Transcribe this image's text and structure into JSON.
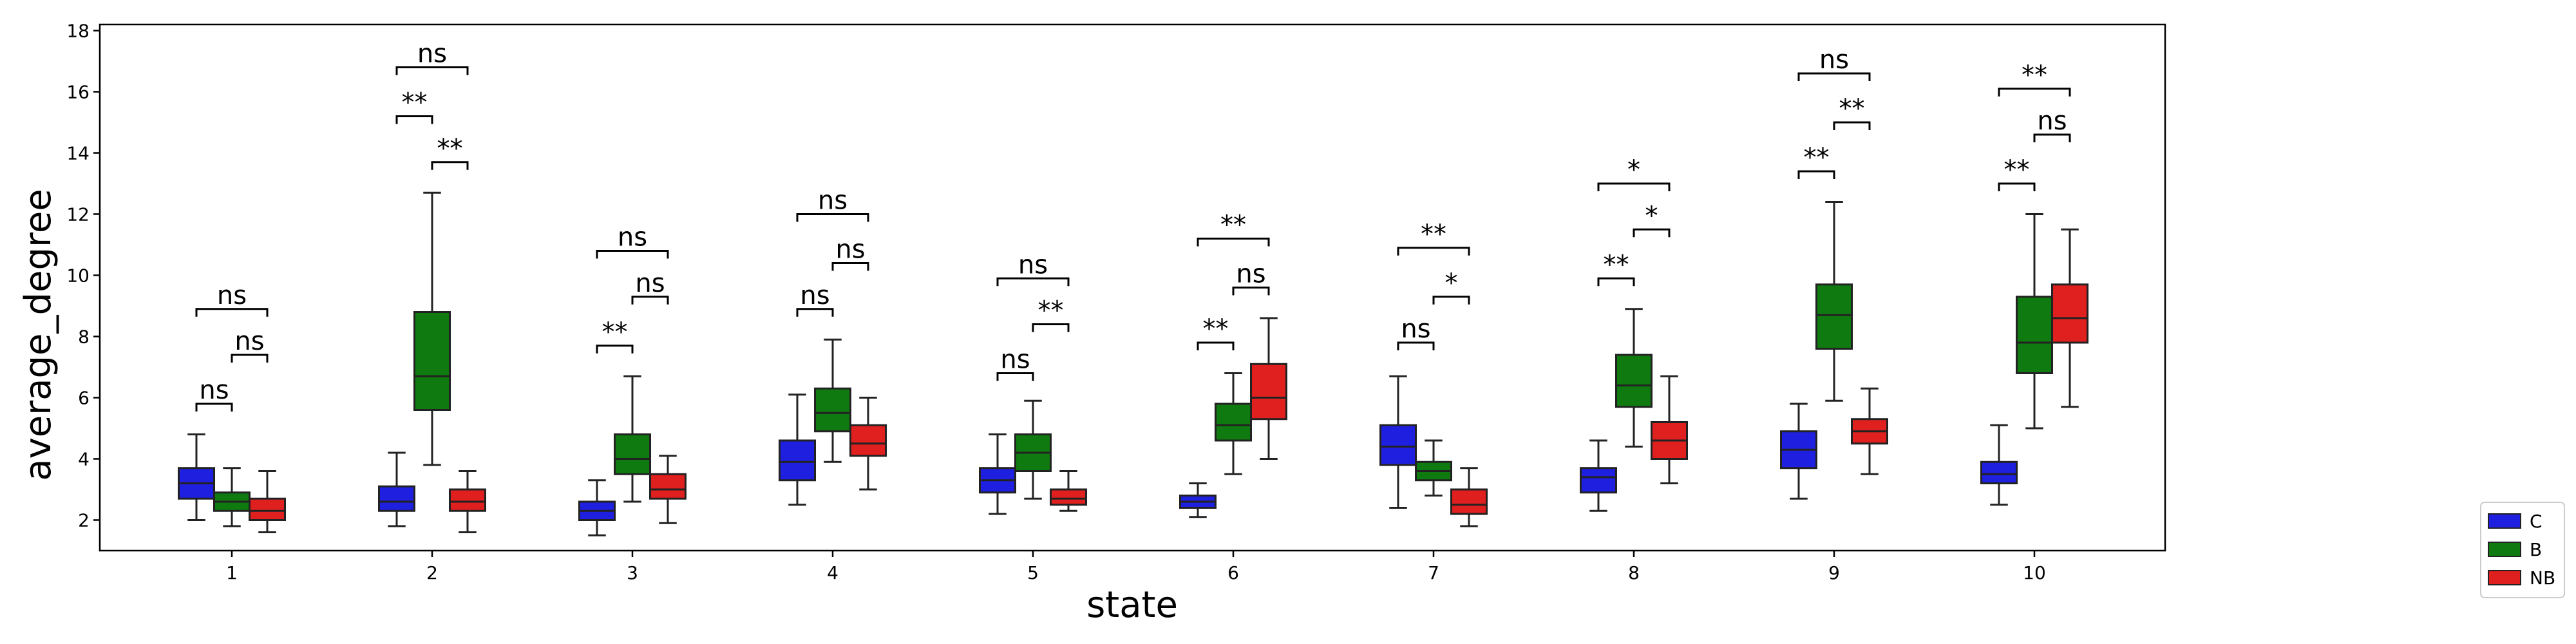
{
  "chart_data": {
    "type": "box",
    "title": "",
    "xlabel": "state",
    "ylabel": "average_degree",
    "ylim": [
      1,
      18.2
    ],
    "yticks": [
      2,
      4,
      6,
      8,
      10,
      12,
      14,
      16,
      18
    ],
    "categories": [
      "1",
      "2",
      "3",
      "4",
      "5",
      "6",
      "7",
      "8",
      "9",
      "10"
    ],
    "grid": false,
    "legend_position": "outside-lower-right",
    "series": [
      {
        "name": "C",
        "color": "#1f1fe0",
        "boxes": [
          {
            "whislo": 2.0,
            "q1": 2.7,
            "med": 3.2,
            "q3": 3.7,
            "whishi": 4.8
          },
          {
            "whislo": 1.8,
            "q1": 2.3,
            "med": 2.6,
            "q3": 3.1,
            "whishi": 4.2
          },
          {
            "whislo": 1.5,
            "q1": 2.0,
            "med": 2.3,
            "q3": 2.6,
            "whishi": 3.3
          },
          {
            "whislo": 2.5,
            "q1": 3.3,
            "med": 3.9,
            "q3": 4.6,
            "whishi": 6.1
          },
          {
            "whislo": 2.2,
            "q1": 2.9,
            "med": 3.3,
            "q3": 3.7,
            "whishi": 4.8
          },
          {
            "whislo": 2.1,
            "q1": 2.4,
            "med": 2.6,
            "q3": 2.8,
            "whishi": 3.2
          },
          {
            "whislo": 2.4,
            "q1": 3.8,
            "med": 4.4,
            "q3": 5.1,
            "whishi": 6.7
          },
          {
            "whislo": 2.3,
            "q1": 2.9,
            "med": 3.4,
            "q3": 3.7,
            "whishi": 4.6
          },
          {
            "whislo": 2.7,
            "q1": 3.7,
            "med": 4.3,
            "q3": 4.9,
            "whishi": 5.8
          },
          {
            "whislo": 2.5,
            "q1": 3.2,
            "med": 3.5,
            "q3": 3.9,
            "whishi": 5.1
          }
        ]
      },
      {
        "name": "B",
        "color": "#0f7a0f",
        "boxes": [
          {
            "whislo": 1.8,
            "q1": 2.3,
            "med": 2.6,
            "q3": 2.9,
            "whishi": 3.7
          },
          {
            "whislo": 3.8,
            "q1": 5.6,
            "med": 6.7,
            "q3": 8.8,
            "whishi": 12.7
          },
          {
            "whislo": 2.6,
            "q1": 3.5,
            "med": 4.0,
            "q3": 4.8,
            "whishi": 6.7
          },
          {
            "whislo": 3.9,
            "q1": 4.9,
            "med": 5.5,
            "q3": 6.3,
            "whishi": 7.9
          },
          {
            "whislo": 2.7,
            "q1": 3.6,
            "med": 4.2,
            "q3": 4.8,
            "whishi": 5.9
          },
          {
            "whislo": 3.5,
            "q1": 4.6,
            "med": 5.1,
            "q3": 5.8,
            "whishi": 6.8
          },
          {
            "whislo": 2.8,
            "q1": 3.3,
            "med": 3.6,
            "q3": 3.9,
            "whishi": 4.6
          },
          {
            "whislo": 4.4,
            "q1": 5.7,
            "med": 6.4,
            "q3": 7.4,
            "whishi": 8.9
          },
          {
            "whislo": 5.9,
            "q1": 7.6,
            "med": 8.7,
            "q3": 9.7,
            "whishi": 12.4
          },
          {
            "whislo": 5.0,
            "q1": 6.8,
            "med": 7.8,
            "q3": 9.3,
            "whishi": 12.0
          }
        ]
      },
      {
        "name": "NB",
        "color": "#e01f1f",
        "boxes": [
          {
            "whislo": 1.6,
            "q1": 2.0,
            "med": 2.3,
            "q3": 2.7,
            "whishi": 3.6
          },
          {
            "whislo": 1.6,
            "q1": 2.3,
            "med": 2.6,
            "q3": 3.0,
            "whishi": 3.6
          },
          {
            "whislo": 1.9,
            "q1": 2.7,
            "med": 3.0,
            "q3": 3.5,
            "whishi": 4.1
          },
          {
            "whislo": 3.0,
            "q1": 4.1,
            "med": 4.5,
            "q3": 5.1,
            "whishi": 6.0
          },
          {
            "whislo": 2.3,
            "q1": 2.5,
            "med": 2.7,
            "q3": 3.0,
            "whishi": 3.6
          },
          {
            "whislo": 4.0,
            "q1": 5.3,
            "med": 6.0,
            "q3": 7.1,
            "whishi": 8.6
          },
          {
            "whislo": 1.8,
            "q1": 2.2,
            "med": 2.5,
            "q3": 3.0,
            "whishi": 3.7
          },
          {
            "whislo": 3.2,
            "q1": 4.0,
            "med": 4.6,
            "q3": 5.2,
            "whishi": 6.7
          },
          {
            "whislo": 3.5,
            "q1": 4.5,
            "med": 4.9,
            "q3": 5.3,
            "whishi": 6.3
          },
          {
            "whislo": 5.7,
            "q1": 7.8,
            "med": 8.6,
            "q3": 9.7,
            "whishi": 11.5
          }
        ]
      }
    ],
    "annotations": [
      {
        "category": "1",
        "from": "C",
        "to": "B",
        "y": 5.8,
        "label": "ns"
      },
      {
        "category": "1",
        "from": "B",
        "to": "NB",
        "y": 7.4,
        "label": "ns"
      },
      {
        "category": "1",
        "from": "C",
        "to": "NB",
        "y": 8.9,
        "label": "ns"
      },
      {
        "category": "2",
        "from": "C",
        "to": "B",
        "y": 15.2,
        "label": "**"
      },
      {
        "category": "2",
        "from": "B",
        "to": "NB",
        "y": 13.7,
        "label": "**"
      },
      {
        "category": "2",
        "from": "C",
        "to": "NB",
        "y": 16.8,
        "label": "ns"
      },
      {
        "category": "3",
        "from": "C",
        "to": "B",
        "y": 7.7,
        "label": "**"
      },
      {
        "category": "3",
        "from": "B",
        "to": "NB",
        "y": 9.3,
        "label": "ns"
      },
      {
        "category": "3",
        "from": "C",
        "to": "NB",
        "y": 10.8,
        "label": "ns"
      },
      {
        "category": "4",
        "from": "C",
        "to": "B",
        "y": 8.9,
        "label": "ns"
      },
      {
        "category": "4",
        "from": "B",
        "to": "NB",
        "y": 10.4,
        "label": "ns"
      },
      {
        "category": "4",
        "from": "C",
        "to": "NB",
        "y": 12.0,
        "label": "ns"
      },
      {
        "category": "5",
        "from": "C",
        "to": "B",
        "y": 6.8,
        "label": "ns"
      },
      {
        "category": "5",
        "from": "B",
        "to": "NB",
        "y": 8.4,
        "label": "**"
      },
      {
        "category": "5",
        "from": "C",
        "to": "NB",
        "y": 9.9,
        "label": "ns"
      },
      {
        "category": "6",
        "from": "C",
        "to": "B",
        "y": 7.8,
        "label": "**"
      },
      {
        "category": "6",
        "from": "B",
        "to": "NB",
        "y": 9.6,
        "label": "ns"
      },
      {
        "category": "6",
        "from": "C",
        "to": "NB",
        "y": 11.2,
        "label": "**"
      },
      {
        "category": "7",
        "from": "C",
        "to": "B",
        "y": 7.8,
        "label": "ns"
      },
      {
        "category": "7",
        "from": "B",
        "to": "NB",
        "y": 9.3,
        "label": "*"
      },
      {
        "category": "7",
        "from": "C",
        "to": "NB",
        "y": 10.9,
        "label": "**"
      },
      {
        "category": "8",
        "from": "C",
        "to": "B",
        "y": 9.9,
        "label": "**"
      },
      {
        "category": "8",
        "from": "B",
        "to": "NB",
        "y": 11.5,
        "label": "*"
      },
      {
        "category": "8",
        "from": "C",
        "to": "NB",
        "y": 13.0,
        "label": "*"
      },
      {
        "category": "9",
        "from": "C",
        "to": "B",
        "y": 13.4,
        "label": "**"
      },
      {
        "category": "9",
        "from": "B",
        "to": "NB",
        "y": 15.0,
        "label": "**"
      },
      {
        "category": "9",
        "from": "C",
        "to": "NB",
        "y": 16.6,
        "label": "ns"
      },
      {
        "category": "10",
        "from": "C",
        "to": "B",
        "y": 13.0,
        "label": "**"
      },
      {
        "category": "10",
        "from": "B",
        "to": "NB",
        "y": 14.6,
        "label": "ns"
      },
      {
        "category": "10",
        "from": "C",
        "to": "NB",
        "y": 16.1,
        "label": "**"
      }
    ]
  }
}
